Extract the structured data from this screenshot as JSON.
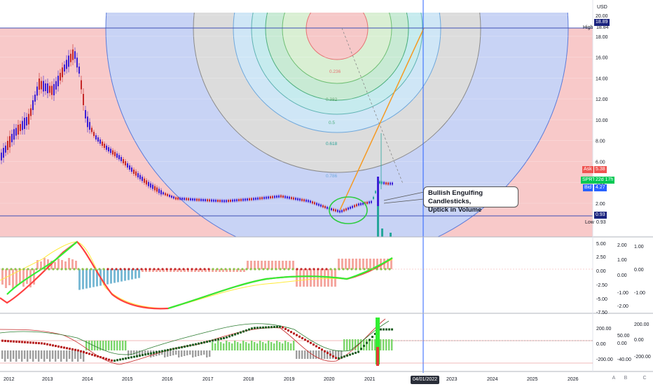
{
  "currency": "USD",
  "price_axis": {
    "ticks": [
      "20.00",
      "18.00",
      "16.00",
      "14.00",
      "12.00",
      "10.00",
      "8.00",
      "6.00",
      "4.00",
      "2.00"
    ],
    "high": {
      "label": "High",
      "value": "18.84",
      "top_value": "18.89"
    },
    "low": {
      "label": "Low",
      "value": "0.93",
      "top_value": "0.93"
    },
    "ask": {
      "label": "Ask",
      "value": "5.38"
    },
    "symbol": {
      "label": "SPRT",
      "value": "22d 17h"
    },
    "bid": {
      "label": "Bid",
      "value": "4.27"
    }
  },
  "fib_levels": [
    "0.236",
    "0.382",
    "0.5",
    "0.618",
    "0.786"
  ],
  "annotation": {
    "line1": "Bullish Engulfing Candlesticks,",
    "line2": "Uptick in Volume"
  },
  "time_axis": {
    "years": [
      "2012",
      "2013",
      "2014",
      "2015",
      "2016",
      "2017",
      "2018",
      "2019",
      "2020",
      "2021",
      "2023",
      "2024",
      "2025",
      "2026"
    ],
    "cursor_date": "04/01/2022"
  },
  "macd_axis": {
    "left": [
      "5.00",
      "2.50",
      "0.00",
      "-2.50",
      "-5.00",
      "-7.50"
    ],
    "mid": [
      "2.00",
      "1.00",
      "0.00",
      "-1.00",
      "-2.00"
    ],
    "right": [
      "1.00",
      "0.00",
      "-1.00"
    ]
  },
  "osc_axis": {
    "left": [
      "200.00",
      "0.00",
      "-200.00"
    ],
    "mid": [
      "50.00",
      "0.00",
      "-40.00"
    ],
    "right": [
      "200.00",
      "0.00",
      "-200.00"
    ]
  },
  "buttons": {
    "a": "A",
    "b": "B",
    "c": "C"
  },
  "colors": {
    "up": "#3c1fd6",
    "down": "#c62828",
    "neutral_up": "#26a69a",
    "fib_bg_red": "#f8c9c9",
    "fib_bg_blue": "#c8d3f5",
    "trend_orange": "#f59a23",
    "ask": "#ef5350",
    "symbol": "#00c853",
    "bid": "#2962ff"
  }
}
